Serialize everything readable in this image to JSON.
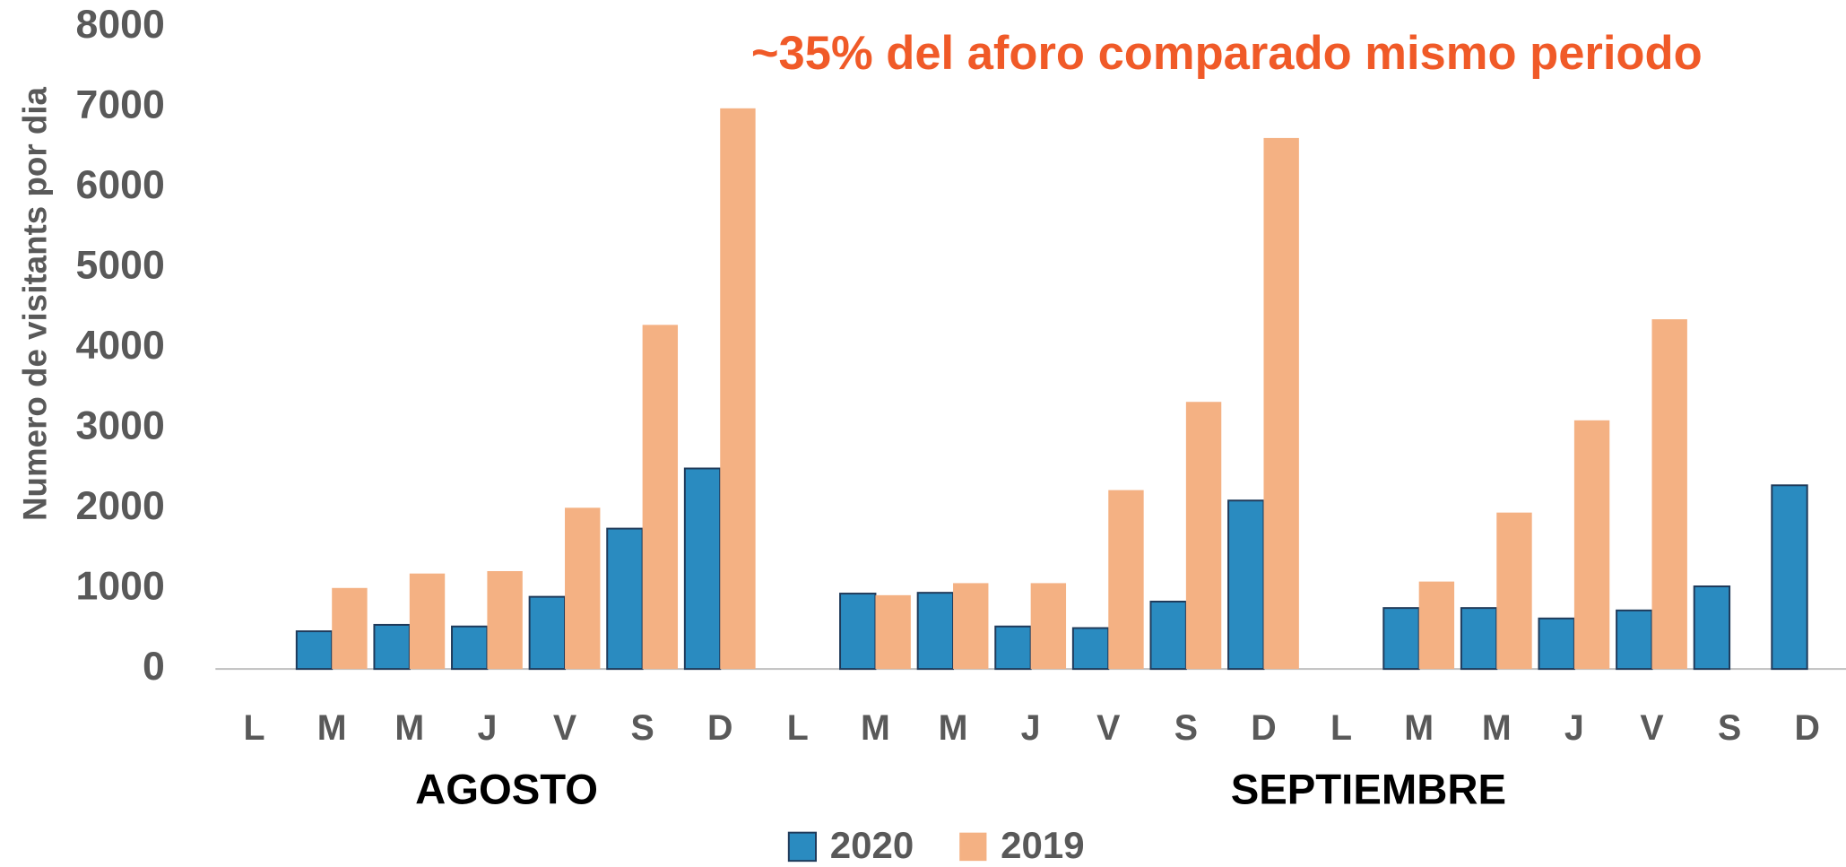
{
  "chart_data": {
    "type": "bar",
    "annotation": "~35% del aforo comparado mismo periodo",
    "y_label": "Numero de visitants por dia",
    "categories": [
      "L",
      "M",
      "M",
      "J",
      "V",
      "S",
      "D",
      "L",
      "M",
      "M",
      "J",
      "V",
      "S",
      "D",
      "L",
      "M",
      "M",
      "J",
      "V",
      "S",
      "D"
    ],
    "group_labels": [
      "AGOSTO",
      "SEPTIEMBRE"
    ],
    "series": [
      {
        "name": "2020",
        "color": "#2a8bc0",
        "values": [
          null,
          470,
          550,
          530,
          900,
          1750,
          2500,
          null,
          940,
          950,
          530,
          510,
          840,
          2100,
          null,
          760,
          760,
          630,
          730,
          1030,
          2290
        ]
      },
      {
        "name": "2019",
        "color": "#f4b183",
        "values": [
          null,
          1010,
          1190,
          1220,
          2010,
          4290,
          6990,
          null,
          920,
          1070,
          1070,
          2230,
          3330,
          6620,
          null,
          1090,
          1950,
          3100,
          4360,
          null,
          null
        ]
      }
    ],
    "ylim": [
      0,
      8000
    ],
    "yticks": [
      0,
      1000,
      2000,
      3000,
      4000,
      5000,
      6000,
      7000,
      8000
    ],
    "grid": false
  }
}
